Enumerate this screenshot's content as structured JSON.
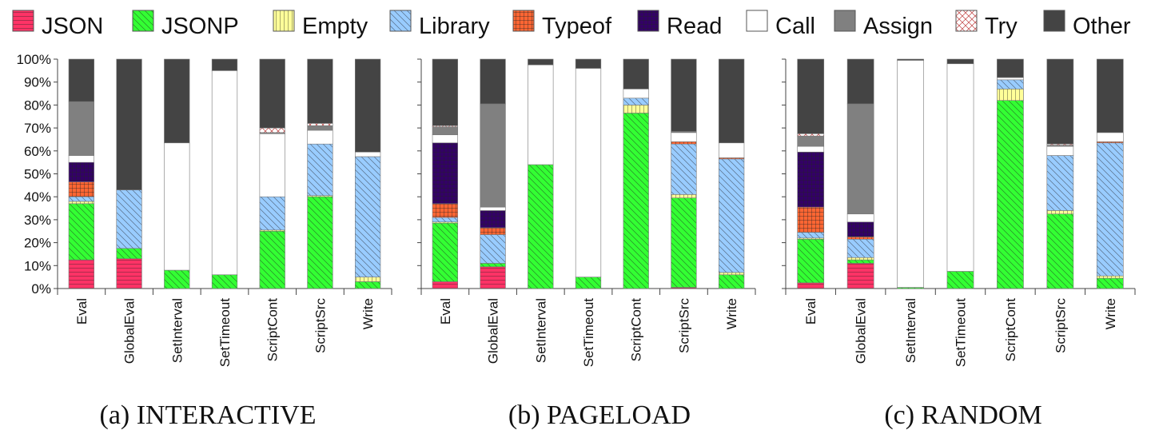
{
  "legend": [
    {
      "key": "JSON",
      "label": "JSON",
      "color": "#ff3366",
      "pattern": "hlines"
    },
    {
      "key": "JSONP",
      "label": "JSONP",
      "color": "#33ff33",
      "pattern": "diag"
    },
    {
      "key": "Empty",
      "label": "Empty",
      "color": "#ffff99",
      "pattern": "vlines"
    },
    {
      "key": "Library",
      "label": "Library",
      "color": "#99ccff",
      "pattern": "diag"
    },
    {
      "key": "Typeof",
      "label": "Typeof",
      "color": "#ff6633",
      "pattern": "grid"
    },
    {
      "key": "Read",
      "label": "Read",
      "color": "#330066",
      "pattern": "grid"
    },
    {
      "key": "Call",
      "label": "Call",
      "color": "#ffffff",
      "pattern": "none"
    },
    {
      "key": "Assign",
      "label": "Assign",
      "color": "#808080",
      "pattern": "none"
    },
    {
      "key": "Try",
      "label": "Try",
      "color": "#ffffff",
      "pattern": "cross"
    },
    {
      "key": "Other",
      "label": "Other",
      "color": "#444444",
      "pattern": "none"
    }
  ],
  "chart_data": [
    {
      "type": "bar",
      "stacked": true,
      "caption": "(a) INTERACTIVE",
      "categories": [
        "Eval",
        "GlobalEval",
        "SetInterval",
        "SetTimeout",
        "ScriptCont",
        "ScriptSrc",
        "Write"
      ],
      "ylim": [
        0,
        100
      ],
      "yticks": [
        "0%",
        "10%",
        "20%",
        "30%",
        "40%",
        "50%",
        "60%",
        "70%",
        "80%",
        "90%",
        "100%"
      ],
      "series": [
        {
          "name": "JSON",
          "values": [
            12.5,
            13,
            0,
            0,
            0,
            0,
            0
          ]
        },
        {
          "name": "JSONP",
          "values": [
            24.5,
            4.5,
            8,
            6,
            25,
            40,
            3
          ]
        },
        {
          "name": "Empty",
          "values": [
            1,
            0,
            0,
            0,
            0.5,
            0.5,
            2
          ]
        },
        {
          "name": "Library",
          "values": [
            2,
            25.5,
            0,
            0,
            14.5,
            22.5,
            52.5
          ]
        },
        {
          "name": "Typeof",
          "values": [
            6.5,
            0,
            0,
            0,
            0,
            0,
            0
          ]
        },
        {
          "name": "Read",
          "values": [
            8.5,
            0,
            0,
            0,
            0,
            0,
            0
          ]
        },
        {
          "name": "Call",
          "values": [
            3,
            0,
            55.5,
            89,
            27.5,
            6,
            2
          ]
        },
        {
          "name": "Assign",
          "values": [
            23.5,
            0,
            0,
            0,
            0.5,
            2,
            0
          ]
        },
        {
          "name": "Try",
          "values": [
            0,
            0,
            0,
            0,
            2,
            1,
            0
          ]
        },
        {
          "name": "Other",
          "values": [
            18.5,
            57,
            36.5,
            5,
            30,
            28,
            40.5
          ]
        }
      ]
    },
    {
      "type": "bar",
      "stacked": true,
      "caption": "(b) PAGELOAD",
      "categories": [
        "Eval",
        "GlobalEval",
        "SetInterval",
        "SetTimeout",
        "ScriptCont",
        "ScriptSrc",
        "Write"
      ],
      "ylim": [
        0,
        100
      ],
      "yticks": [
        "0%",
        "10%",
        "20%",
        "30%",
        "40%",
        "50%",
        "60%",
        "70%",
        "80%",
        "90%",
        "100%"
      ],
      "series": [
        {
          "name": "JSON",
          "values": [
            3,
            9.5,
            0,
            0,
            0,
            0.5,
            0
          ]
        },
        {
          "name": "JSONP",
          "values": [
            25.5,
            1.5,
            54,
            5,
            76.5,
            39,
            6
          ]
        },
        {
          "name": "Empty",
          "values": [
            0.5,
            0,
            0,
            0,
            3.5,
            1.5,
            1
          ]
        },
        {
          "name": "Library",
          "values": [
            2,
            12.5,
            0,
            0,
            3,
            22,
            49.5
          ]
        },
        {
          "name": "Typeof",
          "values": [
            6,
            3,
            0,
            0,
            0,
            1,
            0.5
          ]
        },
        {
          "name": "Read",
          "values": [
            26.5,
            7.5,
            0,
            0,
            0,
            0,
            0
          ]
        },
        {
          "name": "Call",
          "values": [
            3.5,
            1.5,
            43.5,
            91,
            4,
            4,
            6.5
          ]
        },
        {
          "name": "Assign",
          "values": [
            3.5,
            45,
            0,
            0,
            0,
            0.5,
            0
          ]
        },
        {
          "name": "Try",
          "values": [
            0.5,
            0,
            0,
            0,
            0,
            0,
            0
          ]
        },
        {
          "name": "Other",
          "values": [
            29,
            19.5,
            2.5,
            4,
            13,
            31.5,
            36.5
          ]
        }
      ]
    },
    {
      "type": "bar",
      "stacked": true,
      "caption": "(c) RANDOM",
      "categories": [
        "Eval",
        "GlobalEval",
        "SetInterval",
        "SetTimeout",
        "ScriptCont",
        "ScriptSrc",
        "Write"
      ],
      "ylim": [
        0,
        100
      ],
      "yticks": [
        "0%",
        "10%",
        "20%",
        "30%",
        "40%",
        "50%",
        "60%",
        "70%",
        "80%",
        "90%",
        "100%"
      ],
      "series": [
        {
          "name": "JSON",
          "values": [
            2.5,
            11,
            0,
            0,
            0,
            0,
            0
          ]
        },
        {
          "name": "JSONP",
          "values": [
            19,
            1.5,
            0.5,
            7.5,
            82,
            32.5,
            4.5
          ]
        },
        {
          "name": "Empty",
          "values": [
            0.5,
            1,
            0,
            0,
            5,
            1.5,
            1
          ]
        },
        {
          "name": "Library",
          "values": [
            2.5,
            8,
            0,
            0,
            4,
            24,
            58
          ]
        },
        {
          "name": "Typeof",
          "values": [
            11,
            1,
            0,
            0,
            0,
            0,
            0.5
          ]
        },
        {
          "name": "Read",
          "values": [
            24,
            6.5,
            0,
            0,
            0,
            0,
            0
          ]
        },
        {
          "name": "Call",
          "values": [
            2.5,
            3.5,
            99,
            90.5,
            1,
            4,
            4
          ]
        },
        {
          "name": "Assign",
          "values": [
            4.5,
            48,
            0,
            0,
            0,
            0.5,
            0
          ]
        },
        {
          "name": "Try",
          "values": [
            1,
            0,
            0,
            0,
            0,
            0.5,
            0
          ]
        },
        {
          "name": "Other",
          "values": [
            32.5,
            19.5,
            0.5,
            2,
            8,
            37,
            32
          ]
        }
      ]
    }
  ]
}
